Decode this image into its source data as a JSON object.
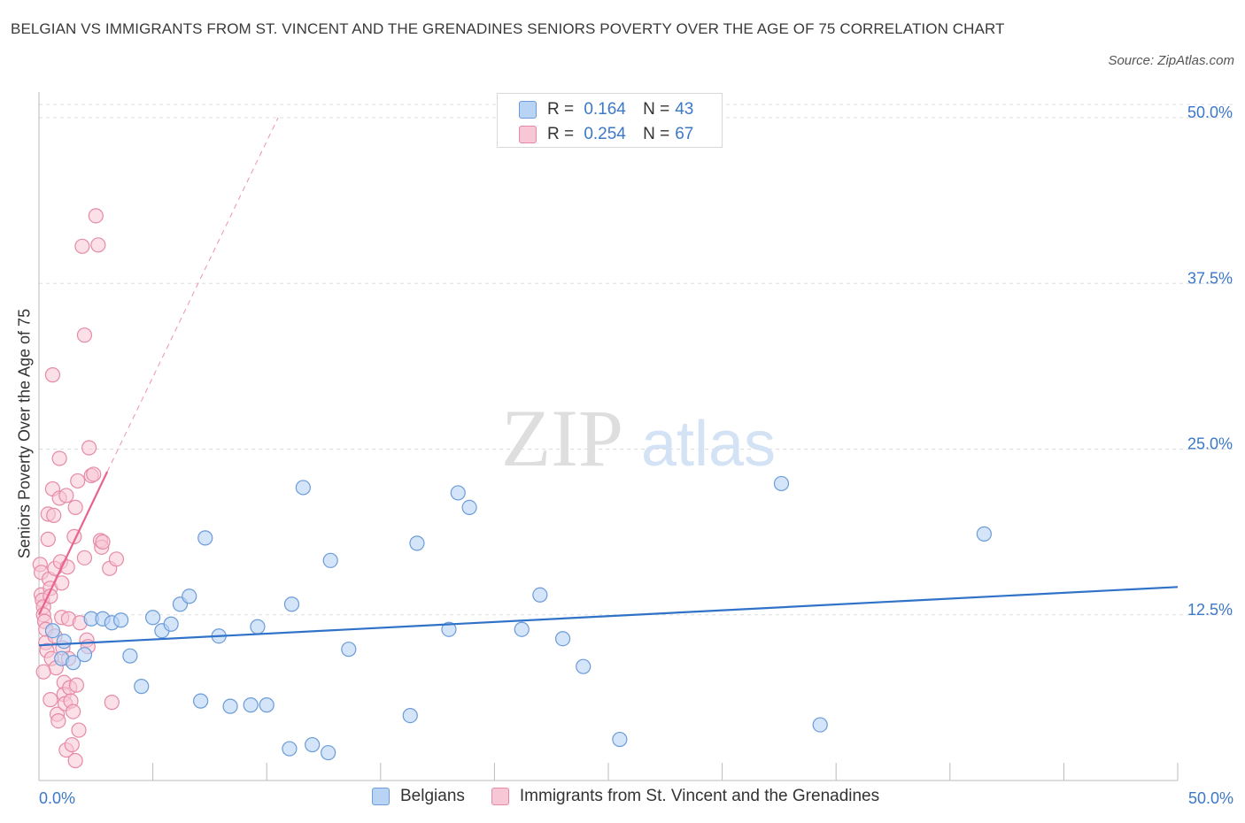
{
  "header": {
    "title": "BELGIAN VS IMMIGRANTS FROM ST. VINCENT AND THE GRENADINES SENIORS POVERTY OVER THE AGE OF 75 CORRELATION CHART",
    "source": "Source: ZipAtlas.com"
  },
  "watermark": {
    "zip": "ZIP",
    "atlas": "atlas"
  },
  "legend": {
    "r_label": "R =",
    "n_label": "N =",
    "series": [
      {
        "name": "Belgians",
        "r": "0.164",
        "n": "43"
      },
      {
        "name": "Immigrants from St. Vincent and the Grenadines",
        "r": "0.254",
        "n": "67"
      }
    ]
  },
  "colors": {
    "blue_fill": "#b9d3f5",
    "blue_stroke": "#6b9bd8",
    "blue_line": "#2f72c8",
    "pink_fill": "#f8c7d5",
    "pink_stroke": "#e68aa6",
    "pink_line": "#e8648c",
    "grid": "#dddddd",
    "tick_label": "#3c78c8"
  },
  "chart_data": {
    "type": "scatter",
    "title": "BELGIAN VS IMMIGRANTS FROM ST. VINCENT AND THE GRENADINES SENIORS POVERTY OVER THE AGE OF 75 CORRELATION CHART",
    "xlabel": "",
    "ylabel": "Seniors Poverty Over the Age of 75",
    "xlim": [
      0,
      50
    ],
    "ylim": [
      0,
      50
    ],
    "x_tick_labels": [
      "0.0%",
      "50.0%"
    ],
    "y_ticks": [
      12.5,
      25.0,
      37.5,
      50.0
    ],
    "y_tick_labels": [
      "12.5%",
      "25.0%",
      "37.5%",
      "50.0%"
    ],
    "grid": true,
    "legend_position": "top-center",
    "series": [
      {
        "name": "Belgians",
        "color": "#6b9bd8",
        "trend": {
          "x": [
            0,
            50
          ],
          "y": [
            10.2,
            14.6
          ],
          "style": "solid"
        },
        "points": [
          [
            0.6,
            11.3
          ],
          [
            1.0,
            9.2
          ],
          [
            1.1,
            10.5
          ],
          [
            1.5,
            8.9
          ],
          [
            2.0,
            9.5
          ],
          [
            2.3,
            12.2
          ],
          [
            2.8,
            12.2
          ],
          [
            3.2,
            11.9
          ],
          [
            3.6,
            12.1
          ],
          [
            4.0,
            9.4
          ],
          [
            4.5,
            7.1
          ],
          [
            5.0,
            12.3
          ],
          [
            5.4,
            11.3
          ],
          [
            5.8,
            11.8
          ],
          [
            6.2,
            13.3
          ],
          [
            6.6,
            13.9
          ],
          [
            7.1,
            6.0
          ],
          [
            7.3,
            18.3
          ],
          [
            7.9,
            10.9
          ],
          [
            8.4,
            5.6
          ],
          [
            9.3,
            5.7
          ],
          [
            9.6,
            11.6
          ],
          [
            10.0,
            5.7
          ],
          [
            11.0,
            2.4
          ],
          [
            11.1,
            13.3
          ],
          [
            11.6,
            22.1
          ],
          [
            12.0,
            2.7
          ],
          [
            12.7,
            2.1
          ],
          [
            12.8,
            16.6
          ],
          [
            13.6,
            9.9
          ],
          [
            16.3,
            4.9
          ],
          [
            16.6,
            17.9
          ],
          [
            18.0,
            11.4
          ],
          [
            18.4,
            21.7
          ],
          [
            18.9,
            20.6
          ],
          [
            21.2,
            11.4
          ],
          [
            22.0,
            14.0
          ],
          [
            23.0,
            10.7
          ],
          [
            23.9,
            8.6
          ],
          [
            25.5,
            3.1
          ],
          [
            32.6,
            22.4
          ],
          [
            34.3,
            4.2
          ],
          [
            41.5,
            18.6
          ]
        ]
      },
      {
        "name": "Immigrants from St. Vincent and the Grenadines",
        "color": "#e68aa6",
        "trend_solid": {
          "x": [
            0,
            3.0
          ],
          "y": [
            12.5,
            23.3
          ]
        },
        "trend_dashed": {
          "x": [
            3.0,
            10.5
          ],
          "y": [
            23.3,
            50.0
          ]
        },
        "points": [
          [
            0.05,
            16.3
          ],
          [
            0.1,
            15.7
          ],
          [
            0.1,
            14.0
          ],
          [
            0.15,
            13.6
          ],
          [
            0.2,
            13.1
          ],
          [
            0.2,
            12.5
          ],
          [
            0.25,
            12.0
          ],
          [
            0.3,
            11.4
          ],
          [
            0.3,
            10.4
          ],
          [
            0.35,
            9.8
          ],
          [
            0.4,
            20.1
          ],
          [
            0.4,
            18.2
          ],
          [
            0.45,
            15.2
          ],
          [
            0.5,
            14.5
          ],
          [
            0.5,
            13.9
          ],
          [
            0.55,
            9.2
          ],
          [
            0.6,
            30.6
          ],
          [
            0.6,
            22.0
          ],
          [
            0.65,
            20.0
          ],
          [
            0.7,
            16.0
          ],
          [
            0.7,
            10.9
          ],
          [
            0.75,
            8.5
          ],
          [
            0.8,
            5.0
          ],
          [
            0.85,
            4.5
          ],
          [
            0.9,
            24.3
          ],
          [
            0.9,
            21.3
          ],
          [
            0.95,
            16.5
          ],
          [
            1.0,
            14.9
          ],
          [
            1.0,
            12.3
          ],
          [
            1.05,
            10.0
          ],
          [
            1.1,
            7.4
          ],
          [
            1.1,
            6.5
          ],
          [
            1.15,
            5.8
          ],
          [
            1.2,
            2.3
          ],
          [
            1.2,
            21.5
          ],
          [
            1.25,
            16.1
          ],
          [
            1.3,
            12.2
          ],
          [
            1.3,
            9.2
          ],
          [
            1.35,
            7.0
          ],
          [
            1.4,
            6.0
          ],
          [
            1.45,
            2.7
          ],
          [
            1.5,
            5.2
          ],
          [
            1.55,
            18.4
          ],
          [
            1.6,
            20.6
          ],
          [
            1.6,
            1.5
          ],
          [
            1.65,
            7.2
          ],
          [
            1.7,
            22.6
          ],
          [
            1.75,
            3.8
          ],
          [
            1.8,
            11.9
          ],
          [
            1.9,
            40.3
          ],
          [
            2.0,
            33.6
          ],
          [
            2.0,
            16.8
          ],
          [
            2.1,
            10.6
          ],
          [
            2.15,
            10.1
          ],
          [
            2.2,
            25.1
          ],
          [
            2.3,
            23.0
          ],
          [
            2.4,
            23.1
          ],
          [
            2.5,
            42.6
          ],
          [
            2.6,
            40.4
          ],
          [
            2.7,
            18.1
          ],
          [
            2.75,
            17.6
          ],
          [
            2.8,
            18.0
          ],
          [
            3.1,
            16.0
          ],
          [
            3.2,
            5.9
          ],
          [
            3.4,
            16.7
          ],
          [
            0.5,
            6.1
          ],
          [
            0.2,
            8.2
          ]
        ]
      }
    ]
  }
}
